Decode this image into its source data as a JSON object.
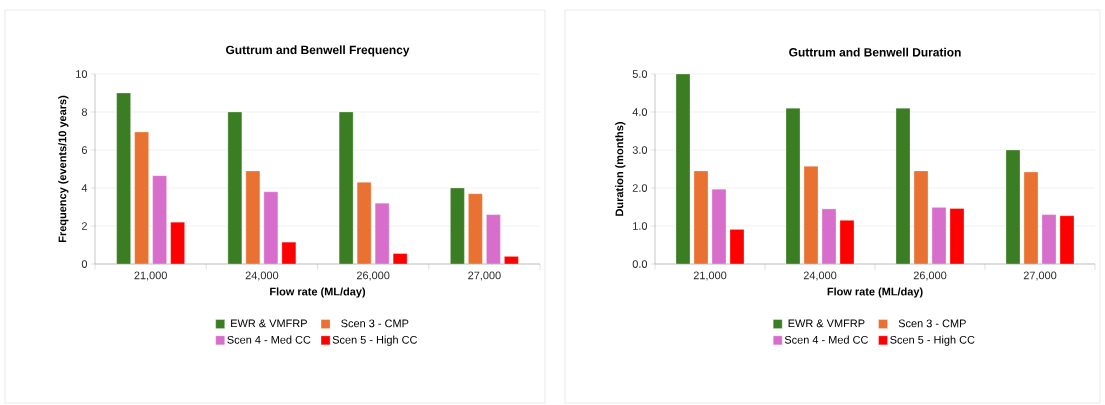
{
  "chart_data": [
    {
      "type": "bar",
      "title": "Guttrum and Benwell Frequency",
      "xlabel": "Flow rate (ML/day)",
      "ylabel": "Frequency (events/10 years)",
      "categories": [
        "21,000",
        "24,000",
        "26,000",
        "27,000"
      ],
      "series": [
        {
          "name": "EWR & VMFRP",
          "color": "#3a7d22",
          "values": [
            9,
            8,
            8,
            4
          ]
        },
        {
          "name": "Scen 3 - CMP",
          "color": "#e97132",
          "values": [
            6.95,
            4.9,
            4.3,
            3.7
          ]
        },
        {
          "name": "Scen 4 - Med CC",
          "color": "#d86ecc",
          "values": [
            4.65,
            3.8,
            3.2,
            2.6
          ]
        },
        {
          "name": "Scen 5 - High CC",
          "color": "#ff0000",
          "values": [
            2.2,
            1.15,
            0.55,
            0.4
          ]
        }
      ],
      "ylim": [
        0,
        10
      ],
      "yticks": [
        0,
        2,
        4,
        6,
        8,
        10
      ],
      "grid": "y",
      "legend": "bottom"
    },
    {
      "type": "bar",
      "title": "Guttrum and Benwell Duration",
      "xlabel": "Flow rate (ML/day)",
      "ylabel": "Duration (months)",
      "categories": [
        "21,000",
        "24,000",
        "26,000",
        "27,000"
      ],
      "series": [
        {
          "name": "EWR & VMFRP",
          "color": "#3a7d22",
          "values": [
            5.0,
            4.1,
            4.1,
            3.0
          ]
        },
        {
          "name": "Scen 3 - CMP",
          "color": "#e97132",
          "values": [
            2.45,
            2.57,
            2.45,
            2.42
          ]
        },
        {
          "name": "Scen 4 - Med CC",
          "color": "#d86ecc",
          "values": [
            1.97,
            1.45,
            1.49,
            1.3
          ]
        },
        {
          "name": "Scen 5 - High CC",
          "color": "#ff0000",
          "values": [
            0.91,
            1.15,
            1.46,
            1.27
          ]
        }
      ],
      "ylim": [
        0,
        5
      ],
      "yticks": [
        {
          "value": 0,
          "label": "0.0"
        },
        {
          "value": 1,
          "label": "1.0"
        },
        {
          "value": 2,
          "label": "2.0"
        },
        {
          "value": 3,
          "label": "3.0"
        },
        {
          "value": 4,
          "label": "4.0"
        },
        {
          "value": 5,
          "label": "5.0"
        }
      ],
      "grid": "y",
      "legend": "bottom"
    }
  ]
}
